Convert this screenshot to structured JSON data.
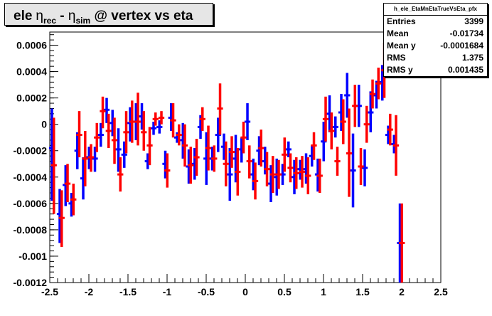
{
  "title": {
    "prefix": "ele",
    "eta": "η",
    "sub_rec": "rec",
    "minus": " - ",
    "sub_sim": "sim",
    "suffix": " @ vertex vs eta"
  },
  "stats": {
    "name": "h_ele_EtaMnEtaTrueVsEta_pfx",
    "rows": [
      {
        "label": "Entries",
        "value": "3399"
      },
      {
        "label": "Mean",
        "value": "-0.01734"
      },
      {
        "label": "Mean y",
        "value": "-0.0001684"
      },
      {
        "label": "RMS",
        "value": "1.375"
      },
      {
        "label": "RMS y",
        "value": "0.001435"
      }
    ]
  },
  "chart_data": {
    "type": "scatter",
    "xlim": [
      -2.5,
      2.5
    ],
    "ylim": [
      -0.0012,
      0.0007
    ],
    "xticks": [
      -2.5,
      -2,
      -1.5,
      -1,
      -0.5,
      0,
      0.5,
      1,
      1.5,
      2,
      2.5
    ],
    "xtick_labels": [
      "-2.5",
      "-2",
      "-1.5",
      "-1",
      "-0.5",
      "0",
      "0.5",
      "1",
      "1.5",
      "2",
      "2.5"
    ],
    "yticks": [
      -0.0012,
      -0.001,
      -0.0008,
      -0.0006,
      -0.0004,
      -0.0002,
      0,
      0.0002,
      0.0004,
      0.0006
    ],
    "ytick_labels": [
      "-0.0012",
      "-0.001",
      "-0.0008",
      "-0.0006",
      "-0.0004",
      "-0.0002",
      "0",
      "0.0002",
      "0.0004",
      "0.0006"
    ],
    "grid": false,
    "legend": "none",
    "bin_half_width": 0.0375,
    "series": [
      {
        "color": "#0000ff",
        "offset": -0.0125,
        "points": [
          {
            "x": -2.46,
            "y": -0.00018,
            "lo": -0.00058,
            "hi": 0.00012
          },
          {
            "x": -2.36,
            "y": -0.00068,
            "lo": -0.0009,
            "hi": -0.00049
          },
          {
            "x": -2.285,
            "y": -0.00046,
            "lo": -0.00062,
            "hi": -0.00031
          },
          {
            "x": -2.21,
            "y": -0.0006,
            "lo": -0.0007,
            "hi": -0.00052
          },
          {
            "x": -2.135,
            "y": -0.0002,
            "lo": -0.00034,
            "hi": -6e-05
          },
          {
            "x": -2.06,
            "y": -0.00041,
            "lo": -0.00057,
            "hi": -0.00025
          },
          {
            "x": -1.985,
            "y": -0.00025,
            "lo": -0.00034,
            "hi": -0.00017
          },
          {
            "x": -1.91,
            "y": -0.00026,
            "lo": -0.00036,
            "hi": -0.00017
          },
          {
            "x": -1.835,
            "y": -8e-05,
            "lo": -0.00017,
            "hi": 1e-05
          },
          {
            "x": -1.76,
            "y": 0.00011,
            "lo": 1e-05,
            "hi": 0.0002
          },
          {
            "x": -1.685,
            "y": 1e-05,
            "lo": -9e-05,
            "hi": 0.00011
          },
          {
            "x": -1.61,
            "y": -0.00019,
            "lo": -0.00036,
            "hi": -3e-05
          },
          {
            "x": -1.535,
            "y": -0.00023,
            "lo": -0.00033,
            "hi": -0.00013
          },
          {
            "x": -1.46,
            "y": 1e-05,
            "lo": -0.00013,
            "hi": 0.00013
          },
          {
            "x": -1.385,
            "y": 2e-05,
            "lo": -0.00012,
            "hi": 0.00016
          },
          {
            "x": -1.31,
            "y": 6e-05,
            "lo": -4e-05,
            "hi": 0.00016
          },
          {
            "x": -1.235,
            "y": -0.00028,
            "lo": -0.00034,
            "hi": -0.00022
          },
          {
            "x": -1.16,
            "y": -3e-05,
            "lo": -8e-05,
            "hi": 2e-05
          },
          {
            "x": -1.085,
            "y": -2e-05,
            "lo": -7e-05,
            "hi": 3e-05
          },
          {
            "x": -1.01,
            "y": -0.0003,
            "lo": -0.00041,
            "hi": -0.0002
          },
          {
            "x": -0.935,
            "y": 5e-05,
            "lo": -5e-05,
            "hi": 0.00016
          },
          {
            "x": -0.86,
            "y": -0.0001,
            "lo": -0.00014,
            "hi": -6e-05
          },
          {
            "x": -0.785,
            "y": -0.00012,
            "lo": -0.00026,
            "hi": 1e-05
          },
          {
            "x": -0.71,
            "y": -0.00032,
            "lo": -0.00045,
            "hi": -0.00019
          },
          {
            "x": -0.635,
            "y": -0.0003,
            "lo": -0.00042,
            "hi": -0.00018
          },
          {
            "x": -0.56,
            "y": -2e-05,
            "lo": -0.00011,
            "hi": 7e-05
          },
          {
            "x": -0.485,
            "y": -0.00026,
            "lo": -0.00046,
            "hi": -6e-05
          },
          {
            "x": -0.41,
            "y": -0.00026,
            "lo": -0.00035,
            "hi": -0.00017
          },
          {
            "x": -0.335,
            "y": -8e-05,
            "lo": -0.00021,
            "hi": 5e-05
          },
          {
            "x": -0.26,
            "y": -0.00017,
            "lo": -0.00027,
            "hi": -7e-05
          },
          {
            "x": -0.185,
            "y": -0.00038,
            "lo": -0.00058,
            "hi": -0.00018
          },
          {
            "x": -0.11,
            "y": -0.00026,
            "lo": -0.00044,
            "hi": -8e-05
          },
          {
            "x": -0.035,
            "y": -0.00019,
            "lo": -0.00029,
            "hi": -0.0001
          },
          {
            "x": 0.04,
            "y": 2e-05,
            "lo": -0.00012,
            "hi": 0.00016
          },
          {
            "x": 0.115,
            "y": -0.00038,
            "lo": -0.0005,
            "hi": -0.00026
          },
          {
            "x": 0.19,
            "y": -0.0002,
            "lo": -0.00031,
            "hi": -9e-05
          },
          {
            "x": 0.265,
            "y": -0.00028,
            "lo": -0.00038,
            "hi": -0.00017
          },
          {
            "x": 0.34,
            "y": -0.00045,
            "lo": -0.00059,
            "hi": -0.00031
          },
          {
            "x": 0.415,
            "y": -0.0004,
            "lo": -0.00054,
            "hi": -0.00026
          },
          {
            "x": 0.49,
            "y": -0.00038,
            "lo": -0.00046,
            "hi": -0.0003
          },
          {
            "x": 0.565,
            "y": -0.00019,
            "lo": -0.00025,
            "hi": -0.00013
          },
          {
            "x": 0.64,
            "y": -0.0004,
            "lo": -0.00053,
            "hi": -0.00027
          },
          {
            "x": 0.715,
            "y": -0.00034,
            "lo": -0.00042,
            "hi": -0.00027
          },
          {
            "x": 0.79,
            "y": -0.00034,
            "lo": -0.00045,
            "hi": -0.00022
          },
          {
            "x": 0.865,
            "y": -0.00024,
            "lo": -0.00032,
            "hi": -0.00016
          },
          {
            "x": 0.94,
            "y": -0.00038,
            "lo": -0.00051,
            "hi": -0.00026
          },
          {
            "x": 1.015,
            "y": -0.00013,
            "lo": -0.00028,
            "hi": 2e-05
          },
          {
            "x": 1.09,
            "y": 8e-05,
            "lo": -6e-05,
            "hi": 0.00022
          },
          {
            "x": 1.165,
            "y": -2e-05,
            "lo": -0.0001,
            "hi": 6e-05
          },
          {
            "x": 1.24,
            "y": 9e-05,
            "lo": -5e-05,
            "hi": 0.00023
          },
          {
            "x": 1.315,
            "y": 0.00022,
            "lo": 5e-05,
            "hi": 0.00039
          },
          {
            "x": 1.39,
            "y": -0.00035,
            "lo": -0.00063,
            "hi": -7e-05
          },
          {
            "x": 1.465,
            "y": 0.00014,
            "lo": -2e-05,
            "hi": 0.0003
          },
          {
            "x": 1.54,
            "y": -0.00033,
            "lo": -0.00047,
            "hi": -0.00019
          },
          {
            "x": 1.615,
            "y": 9e-05,
            "lo": -6e-05,
            "hi": 0.00025
          },
          {
            "x": 1.69,
            "y": 0.00022,
            "lo": 0.00012,
            "hi": 0.00033
          },
          {
            "x": 1.765,
            "y": 0.00032,
            "lo": 0.00018,
            "hi": 0.00045
          },
          {
            "x": 1.84,
            "y": -8e-05,
            "lo": -0.00015,
            "hi": -1e-05
          },
          {
            "x": 1.915,
            "y": -0.00015,
            "lo": -0.00022,
            "hi": -8e-05
          },
          {
            "x": 1.99,
            "y": -0.0009,
            "lo": -0.0012,
            "hi": -0.0006
          }
        ]
      },
      {
        "color": "#ff0000",
        "offset": 0.0125,
        "points": [
          {
            "x": -2.46,
            "y": -0.00031,
            "lo": -0.00068,
            "hi": 5e-05
          },
          {
            "x": -2.36,
            "y": -0.00071,
            "lo": -0.00093,
            "hi": -0.0005
          },
          {
            "x": -2.285,
            "y": -0.00045,
            "lo": -0.00059,
            "hi": -0.0003
          },
          {
            "x": -2.21,
            "y": -0.00057,
            "lo": -0.00069,
            "hi": -0.00045
          },
          {
            "x": -2.135,
            "y": -8e-05,
            "lo": -0.00025,
            "hi": 0.0001
          },
          {
            "x": -2.06,
            "y": -0.00026,
            "lo": -0.00047,
            "hi": -5e-05
          },
          {
            "x": -1.985,
            "y": -0.00025,
            "lo": -0.00036,
            "hi": -0.00015
          },
          {
            "x": -1.91,
            "y": -0.0001,
            "lo": -0.00021,
            "hi": 1e-05
          },
          {
            "x": -1.835,
            "y": 0.0001,
            "lo": -3e-05,
            "hi": 0.00021
          },
          {
            "x": -1.76,
            "y": -5e-05,
            "lo": -0.00018,
            "hi": 8e-05
          },
          {
            "x": -1.685,
            "y": -0.00012,
            "lo": -0.0003,
            "hi": 5e-05
          },
          {
            "x": -1.61,
            "y": -0.00038,
            "lo": -0.00051,
            "hi": -0.00025
          },
          {
            "x": -1.535,
            "y": -6e-05,
            "lo": -0.00022,
            "hi": 0.0001
          },
          {
            "x": -1.46,
            "y": 2e-05,
            "lo": -0.00014,
            "hi": 0.00018
          },
          {
            "x": -1.385,
            "y": 2e-05,
            "lo": -0.00016,
            "hi": 0.00024
          },
          {
            "x": -1.31,
            "y": -6e-05,
            "lo": -0.0002,
            "hi": 0.0001
          },
          {
            "x": -1.235,
            "y": -0.00016,
            "lo": -0.00031,
            "hi": -2e-05
          },
          {
            "x": -1.16,
            "y": 4e-05,
            "lo": -1e-05,
            "hi": 9e-05
          },
          {
            "x": -1.085,
            "y": 5e-05,
            "lo": 0.0,
            "hi": 0.0001
          },
          {
            "x": -1.01,
            "y": -0.00035,
            "lo": -0.00048,
            "hi": -0.00022
          },
          {
            "x": -0.935,
            "y": 3e-05,
            "lo": -0.0001,
            "hi": 0.00016
          },
          {
            "x": -0.86,
            "y": -8e-05,
            "lo": -0.00016,
            "hi": 0.0
          },
          {
            "x": -0.785,
            "y": -0.00016,
            "lo": -0.00032,
            "hi": 0.0
          },
          {
            "x": -0.71,
            "y": -0.00031,
            "lo": -0.00045,
            "hi": -0.00017
          },
          {
            "x": -0.635,
            "y": -0.00025,
            "lo": -0.00039,
            "hi": -0.00011
          },
          {
            "x": -0.56,
            "y": 4e-05,
            "lo": -5e-05,
            "hi": 0.00013
          },
          {
            "x": -0.485,
            "y": -0.00018,
            "lo": -0.00035,
            "hi": -1e-05
          },
          {
            "x": -0.41,
            "y": -0.00026,
            "lo": -0.00036,
            "hi": -0.00016
          },
          {
            "x": -0.335,
            "y": 0.00012,
            "lo": -8e-05,
            "hi": 0.00031
          },
          {
            "x": -0.26,
            "y": -0.0003,
            "lo": -0.00047,
            "hi": -0.00013
          },
          {
            "x": -0.185,
            "y": -0.00021,
            "lo": -0.00033,
            "hi": -9e-05
          },
          {
            "x": -0.11,
            "y": -0.00036,
            "lo": -0.00054,
            "hi": -0.00018
          },
          {
            "x": -0.035,
            "y": -0.0001,
            "lo": -0.00022,
            "hi": 2e-05
          },
          {
            "x": 0.04,
            "y": -0.00028,
            "lo": -0.00041,
            "hi": -0.00016
          },
          {
            "x": 0.115,
            "y": -0.00043,
            "lo": -0.00057,
            "hi": -0.00029
          },
          {
            "x": 0.19,
            "y": -0.00018,
            "lo": -0.00032,
            "hi": -4e-05
          },
          {
            "x": 0.265,
            "y": -0.00034,
            "lo": -0.00047,
            "hi": -0.00021
          },
          {
            "x": 0.34,
            "y": -0.00038,
            "lo": -0.00052,
            "hi": -0.00024
          },
          {
            "x": 0.415,
            "y": -0.00038,
            "lo": -0.00049,
            "hi": -0.00027
          },
          {
            "x": 0.49,
            "y": -0.00023,
            "lo": -0.00036,
            "hi": -0.0001
          },
          {
            "x": 0.565,
            "y": -0.00033,
            "lo": -0.00044,
            "hi": -0.00022
          },
          {
            "x": 0.64,
            "y": -0.00037,
            "lo": -0.00049,
            "hi": -0.00025
          },
          {
            "x": 0.715,
            "y": -0.00036,
            "lo": -0.00048,
            "hi": -0.00024
          },
          {
            "x": 0.79,
            "y": -0.00039,
            "lo": -0.00053,
            "hi": -0.00025
          },
          {
            "x": 0.865,
            "y": -0.00016,
            "lo": -0.00027,
            "hi": -6e-05
          },
          {
            "x": 0.94,
            "y": -0.00039,
            "lo": -0.00052,
            "hi": -0.00026
          },
          {
            "x": 1.015,
            "y": 4e-05,
            "lo": -0.00013,
            "hi": 0.00021
          },
          {
            "x": 1.09,
            "y": -5e-05,
            "lo": -0.00019,
            "hi": 9e-05
          },
          {
            "x": 1.165,
            "y": -0.00028,
            "lo": -0.00039,
            "hi": -0.00017
          },
          {
            "x": 1.24,
            "y": 2e-05,
            "lo": -0.00015,
            "hi": 0.00019
          },
          {
            "x": 1.315,
            "y": -0.00022,
            "lo": -0.00055,
            "hi": 0.00012
          },
          {
            "x": 1.39,
            "y": 0.00014,
            "lo": -2e-05,
            "hi": 0.0003
          },
          {
            "x": 1.465,
            "y": -0.00032,
            "lo": -0.00046,
            "hi": -0.00018
          },
          {
            "x": 1.54,
            "y": 0.0,
            "lo": -0.00014,
            "hi": 0.00014
          },
          {
            "x": 1.615,
            "y": 0.00023,
            "lo": 0.00012,
            "hi": 0.00034
          },
          {
            "x": 1.69,
            "y": 0.00031,
            "lo": 0.00019,
            "hi": 0.00043
          },
          {
            "x": 1.765,
            "y": 0.00041,
            "lo": 0.0002,
            "hi": 0.00062
          },
          {
            "x": 1.84,
            "y": -4e-05,
            "lo": -0.00016,
            "hi": 8e-05
          },
          {
            "x": 1.915,
            "y": -0.00016,
            "lo": -0.00039,
            "hi": 7e-05
          },
          {
            "x": 1.99,
            "y": -0.0009,
            "lo": -0.00121,
            "hi": -0.0006
          }
        ]
      }
    ]
  }
}
